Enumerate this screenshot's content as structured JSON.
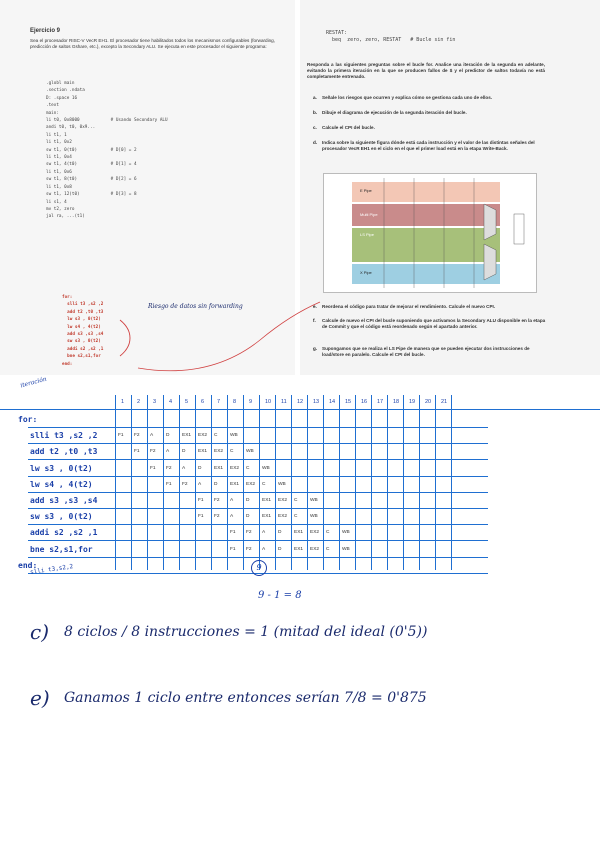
{
  "exercise": {
    "title": "Ejercicio 9",
    "intro": "Sea el procesador RISC-V VecR EH1. El procesador tiene habilitados todos los mecanismos configurables (forwarding, predicción de saltos Gshare, etc.), excepto la Secondary ALU. Se ejecuta en este procesador el siguiente programa:",
    "code": [
      ".globl main",
      "",
      ".section .ndata",
      "D: .space 16",
      "",
      ".text",
      "main:",
      "",
      "li t0, 0x8000            # Usando Secondary ALU",
      "andi t0, t0, 0x9...",
      "",
      "li t1, 1",
      "",
      "li t1, 0x2",
      "sw t1, 0(t0)             # D[0] = 2",
      "li t1, 0x4",
      "sw t1, 4(t0)             # D[1] = 4",
      "li t1, 0x6",
      "sw t1, 8(t0)             # D[2] = 6",
      "li t1, 0x8",
      "sw t1, 12(t0)            # D[3] = 8",
      "",
      "li s1, 4",
      "mv t2, zero",
      "",
      "jal ra, ...(t1)"
    ],
    "loop_code": [
      "for:",
      "  slli t3 ,s2 ,2",
      "  add t2 ,t0 ,t3",
      "  lw s3 , 0(t2)",
      "  lw s4 , 4(t2)",
      "  add s3 ,s3 ,s4",
      "  sw s3 , 0(t2)",
      "  addi s2 ,s2 ,1",
      "  bne s2,s1,for",
      "end:"
    ],
    "handwritten_note": "Riesgo de datos sin forwarding"
  },
  "right_panel": {
    "code_top": [
      "RESTAT:",
      "  beq  zero, zero, RESTAT   # Bucle sin fin"
    ],
    "instructions": "Responda a las siguientes preguntas sobre el bucle for. Analice una iteración de la segunda en adelante, evitando la primera iteración en la que se producen fallos de $ y el predictor de saltos todavía no está completamente entrenado.",
    "questions": [
      {
        "label": "a.",
        "text": "Señale los riesgos que ocurren y explica cómo se gestiona cada uno de ellos."
      },
      {
        "label": "b.",
        "text": "Dibuje el diagrama de ejecución de la segunda iteración del bucle."
      },
      {
        "label": "c.",
        "text": "Calcule el CPI del bucle."
      },
      {
        "label": "d.",
        "text": "Indica sobre la siguiente figura dónde está cada instrucción y el valor de las distintas señales del procesador VecR EH1 en el ciclo en el que el primer load está en la etapa Write-Back."
      },
      {
        "label": "e.",
        "text": "Reordena el código para tratar de mejorar el rendimiento. Calcule el nuevo CPI."
      },
      {
        "label": "f.",
        "text": "Calcule de nuevo el CPI del bucle suponiendo que activamos la Secondary ALU disponible en la etapa de Commit y que el código está reordenado según el apartado anterior."
      },
      {
        "label": "g.",
        "text": "Supongamos que se realiza el LS Pipe de manera que se pueden ejecutar dos instrucciones de load/store en paralelo. Calcule el CPI del bucle."
      }
    ],
    "figure_labels": [
      "E Pipe",
      "Multi Pipe",
      "LS Pipe",
      "X Pipe"
    ]
  },
  "diagram": {
    "margin_note": "iteración",
    "column_numbers": [
      "1",
      "2",
      "3",
      "4",
      "5",
      "6",
      "7",
      "8",
      "9",
      "10",
      "11",
      "12",
      "13",
      "14",
      "15",
      "16",
      "17",
      "18",
      "19",
      "20",
      "21"
    ],
    "rows": [
      {
        "label": "for:",
        "cells": []
      },
      {
        "label": "slli t3 ,s2 ,2",
        "cells": [
          "F1",
          "F2",
          "A",
          "D",
          "EX1",
          "EX2",
          "C",
          "WB"
        ],
        "start": 1
      },
      {
        "label": "add t2 ,t0 ,t3",
        "cells": [
          "F1",
          "F2",
          "A",
          "D",
          "EX1",
          "EX2",
          "C",
          "WB"
        ],
        "start": 2
      },
      {
        "label": "lw s3 , 0(t2)",
        "cells": [
          "F1",
          "F2",
          "A",
          "D",
          "EX1",
          "EX2",
          "C",
          "WB"
        ],
        "start": 3
      },
      {
        "label": "lw s4 , 4(t2)",
        "cells": [
          "F1",
          "F2",
          "A",
          "D",
          "EX1",
          "EX2",
          "C",
          "WB"
        ],
        "start": 4
      },
      {
        "label": "add s3 ,s3 ,s4",
        "cells": [
          "F1",
          "F2",
          "A",
          "D",
          "EX1",
          "EX2",
          "C",
          "WB"
        ],
        "start": 6
      },
      {
        "label": "sw s3 , 0(t2)",
        "cells": [
          "F1",
          "F2",
          "A",
          "D",
          "EX1",
          "EX2",
          "C",
          "WB"
        ],
        "start": 6
      },
      {
        "label": "addi s2 ,s2 ,1",
        "cells": [
          "F1",
          "F2",
          "A",
          "D",
          "EX1",
          "EX2",
          "C",
          "WB"
        ],
        "start": 8
      },
      {
        "label": "bne s2,s1,for",
        "cells": [
          "F1",
          "F2",
          "A",
          "D",
          "EX1",
          "EX2",
          "C",
          "WB"
        ],
        "start": 8
      },
      {
        "label": "end:",
        "cells": []
      }
    ],
    "below_note": "slli t3,s2,2",
    "circle_note": "9",
    "calc_note": "9 - 1 = 8"
  },
  "answers": {
    "c": {
      "label": "c)",
      "text": "8 ciclos / 8 instrucciones = 1 (mitad del ideal (0'5))"
    },
    "e": {
      "label": "e)",
      "text": "Ganamos 1 ciclo entre entonces serían 7/8 = 0'875"
    }
  }
}
